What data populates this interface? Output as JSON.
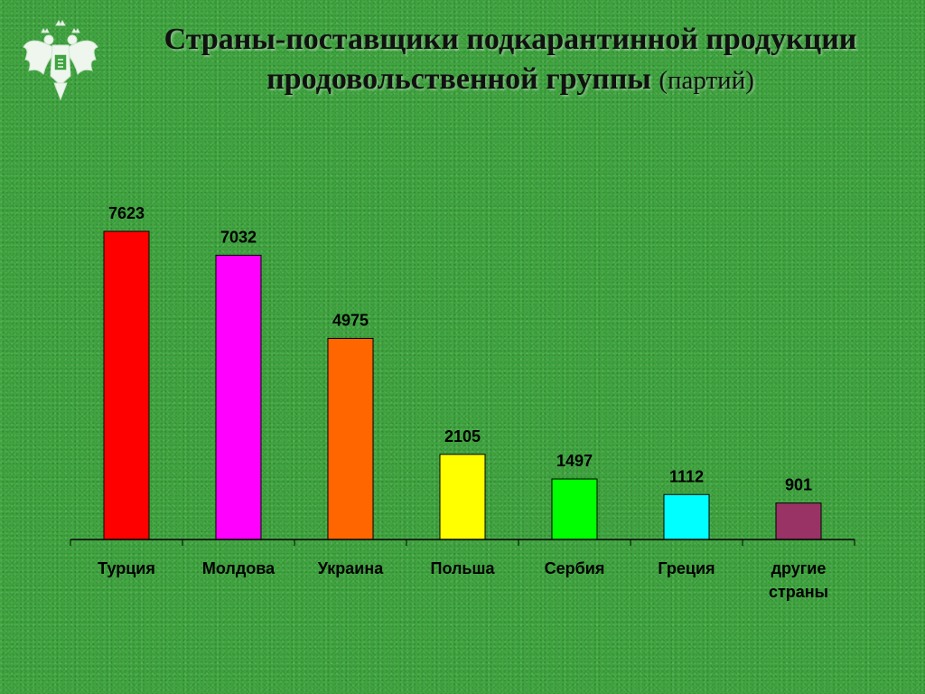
{
  "slide": {
    "title_line1": "Страны-поставщики подкарантинной продукции",
    "title_line2": "продовольственной группы",
    "title_unit": "(партий)",
    "emblem_icon": "double-headed-eagle-emblem-icon"
  },
  "chart_data": {
    "type": "bar",
    "title": "",
    "xlabel": "",
    "ylabel": "",
    "categories": [
      [
        "Турция"
      ],
      [
        "Молдова"
      ],
      [
        "Украина"
      ],
      [
        "Польша"
      ],
      [
        "Сербия"
      ],
      [
        "Греция"
      ],
      [
        "другие",
        "страны"
      ]
    ],
    "values": [
      7623,
      7032,
      4975,
      2105,
      1497,
      1112,
      901
    ],
    "value_labels": [
      "7623",
      "7032",
      "4975",
      "2105",
      "1497",
      "1112",
      "901"
    ],
    "colors": [
      "#ff0000",
      "#ff00ff",
      "#ff6600",
      "#ffff00",
      "#00ff00",
      "#00ffff",
      "#993366"
    ],
    "ylim": [
      0,
      7623
    ],
    "grid": false,
    "legend": "none"
  }
}
